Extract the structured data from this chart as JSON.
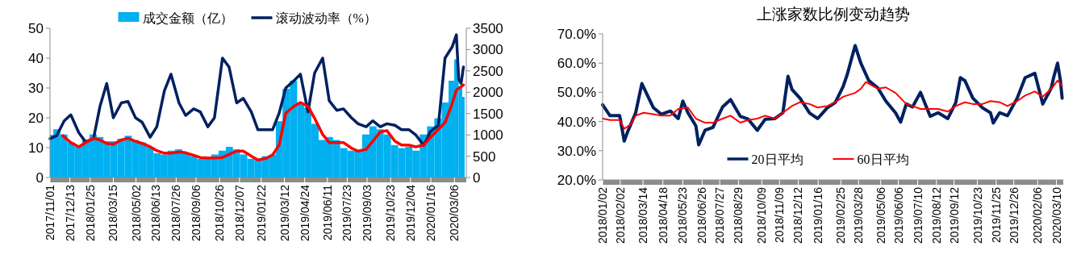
{
  "chart_data": [
    {
      "type": "bar",
      "legend": "top",
      "xlim": [
        "2017-11-01",
        "2020-03-31"
      ],
      "xticks": [
        {
          "value": "2017-11-01",
          "label": "2017/11/01"
        },
        {
          "value": "2017-12-13",
          "label": "2017/12/13"
        },
        {
          "value": "2018-01-25",
          "label": "2018/01/25"
        },
        {
          "value": "2018-03-15",
          "label": "2018/03/15"
        },
        {
          "value": "2018-05-02",
          "label": "2018/05/02"
        },
        {
          "value": "2018-06-13",
          "label": "2018/06/13"
        },
        {
          "value": "2018-07-26",
          "label": "2018/07/26"
        },
        {
          "value": "2018-09-06",
          "label": "2018/09/06"
        },
        {
          "value": "2018-10-26",
          "label": "2018/10/26"
        },
        {
          "value": "2018-12-07",
          "label": "2018/12/07"
        },
        {
          "value": "2019-01-22",
          "label": "2019/01/22"
        },
        {
          "value": "2019-03-12",
          "label": "2019/03/12"
        },
        {
          "value": "2019-04-24",
          "label": "2019/04/24"
        },
        {
          "value": "2019-06-11",
          "label": "2019/06/11"
        },
        {
          "value": "2019-07-23",
          "label": "2019/07/23"
        },
        {
          "value": "2019-09-03",
          "label": "2019/09/03"
        },
        {
          "value": "2019-10-23",
          "label": "2019/10/23"
        },
        {
          "value": "2019-12-04",
          "label": "2019/12/04"
        },
        {
          "value": "2020-01-16",
          "label": "2020/01/16"
        },
        {
          "value": "2020-03-06",
          "label": "2020/03/06"
        }
      ],
      "ylim": [
        0,
        50
      ],
      "yticks": [
        0,
        10,
        20,
        30,
        40,
        50
      ],
      "y2lim": [
        0,
        3500
      ],
      "y2ticks": [
        0,
        500,
        1000,
        1500,
        2000,
        2500,
        3000,
        3500
      ],
      "series": [
        {
          "name": "成交金额（亿）",
          "type": "bar",
          "axis": "y2",
          "color": "#00b0f0",
          "x": [
            "2017-11-01",
            "2017-11-15",
            "2017-12-01",
            "2017-12-15",
            "2018-01-01",
            "2018-01-15",
            "2018-02-01",
            "2018-02-15",
            "2018-03-01",
            "2018-03-15",
            "2018-04-01",
            "2018-04-15",
            "2018-05-01",
            "2018-05-15",
            "2018-06-01",
            "2018-06-15",
            "2018-07-01",
            "2018-07-15",
            "2018-08-01",
            "2018-08-15",
            "2018-09-01",
            "2018-09-15",
            "2018-10-01",
            "2018-10-15",
            "2018-11-01",
            "2018-11-15",
            "2018-12-01",
            "2018-12-15",
            "2019-01-01",
            "2019-01-15",
            "2019-02-01",
            "2019-02-15",
            "2019-03-01",
            "2019-03-15",
            "2019-04-01",
            "2019-04-15",
            "2019-05-01",
            "2019-05-15",
            "2019-06-01",
            "2019-06-15",
            "2019-07-01",
            "2019-07-15",
            "2019-08-01",
            "2019-08-15",
            "2019-09-01",
            "2019-09-15",
            "2019-10-01",
            "2019-10-15",
            "2019-11-01",
            "2019-11-15",
            "2019-12-01",
            "2019-12-15",
            "2020-01-01",
            "2020-01-15",
            "2020-02-01",
            "2020-02-15",
            "2020-03-01",
            "2020-03-10",
            "2020-03-20",
            "2020-03-25"
          ],
          "values": [
            1000,
            1130,
            1010,
            820,
            720,
            880,
            1010,
            950,
            850,
            850,
            910,
            980,
            880,
            820,
            720,
            570,
            540,
            630,
            660,
            570,
            500,
            440,
            470,
            540,
            630,
            720,
            660,
            540,
            440,
            440,
            500,
            540,
            1320,
            2080,
            2270,
            1760,
            1640,
            1260,
            880,
            950,
            880,
            690,
            630,
            630,
            1010,
            1200,
            1130,
            1010,
            760,
            690,
            720,
            630,
            1010,
            1200,
            1390,
            1760,
            2270,
            2770,
            2140,
            1890
          ]
        },
        {
          "name": "滚动波动率（%）",
          "type": "line",
          "color": "#002060",
          "x": [
            "2017-11-01",
            "2017-11-15",
            "2017-12-01",
            "2017-12-15",
            "2018-01-01",
            "2018-01-15",
            "2018-02-01",
            "2018-02-15",
            "2018-03-01",
            "2018-03-15",
            "2018-04-01",
            "2018-04-15",
            "2018-05-01",
            "2018-05-15",
            "2018-06-01",
            "2018-06-15",
            "2018-07-01",
            "2018-07-15",
            "2018-08-01",
            "2018-08-15",
            "2018-09-01",
            "2018-09-15",
            "2018-10-01",
            "2018-10-15",
            "2018-11-01",
            "2018-11-15",
            "2018-12-01",
            "2018-12-15",
            "2019-01-01",
            "2019-01-15",
            "2019-02-01",
            "2019-02-15",
            "2019-03-01",
            "2019-03-15",
            "2019-04-01",
            "2019-04-15",
            "2019-05-01",
            "2019-05-15",
            "2019-06-01",
            "2019-06-15",
            "2019-07-01",
            "2019-07-15",
            "2019-08-01",
            "2019-08-15",
            "2019-09-01",
            "2019-09-15",
            "2019-10-01",
            "2019-10-15",
            "2019-11-01",
            "2019-11-15",
            "2019-12-01",
            "2019-12-15",
            "2020-01-01",
            "2020-01-15",
            "2020-02-01",
            "2020-02-15",
            "2020-03-01",
            "2020-03-10",
            "2020-03-15",
            "2020-03-20",
            "2020-03-25"
          ],
          "values": [
            13,
            14,
            19,
            21,
            15,
            12,
            13,
            24,
            31.5,
            20,
            25,
            25.5,
            20,
            18.5,
            13.5,
            17,
            29,
            34.6,
            25,
            20.8,
            23,
            22,
            17,
            20,
            40,
            37,
            25,
            26.5,
            22,
            16,
            16,
            16,
            21.6,
            30,
            32.4,
            34.6,
            22,
            35,
            40,
            25.7,
            22.5,
            23,
            20,
            18,
            17,
            19,
            17,
            18,
            17.5,
            16,
            16,
            14.3,
            10.8,
            15.4,
            17.5,
            40,
            43.7,
            47.8,
            33,
            31.5,
            37
          ]
        },
        {
          "type": "line",
          "axis": "y2",
          "color": "#ff0000",
          "x": [
            "2017-11-28",
            "2017-12-15",
            "2018-01-01",
            "2018-01-15",
            "2018-02-01",
            "2018-02-15",
            "2018-03-01",
            "2018-03-15",
            "2018-04-01",
            "2018-04-15",
            "2018-05-01",
            "2018-05-15",
            "2018-06-01",
            "2018-06-15",
            "2018-07-01",
            "2018-07-15",
            "2018-08-01",
            "2018-08-15",
            "2018-09-01",
            "2018-09-15",
            "2018-10-01",
            "2018-10-15",
            "2018-11-01",
            "2018-11-15",
            "2018-12-01",
            "2018-12-15",
            "2019-01-01",
            "2019-01-15",
            "2019-02-01",
            "2019-02-15",
            "2019-03-01",
            "2019-03-15",
            "2019-04-01",
            "2019-04-15",
            "2019-05-01",
            "2019-05-15",
            "2019-06-01",
            "2019-06-15",
            "2019-07-01",
            "2019-07-15",
            "2019-08-01",
            "2019-08-15",
            "2019-09-01",
            "2019-09-15",
            "2019-10-01",
            "2019-10-15",
            "2019-11-01",
            "2019-11-15",
            "2019-12-01",
            "2019-12-15",
            "2020-01-01",
            "2020-01-15",
            "2020-02-01",
            "2020-02-15",
            "2020-03-01",
            "2020-03-10",
            "2020-03-20",
            "2020-03-25"
          ],
          "values": [
            980,
            820,
            720,
            820,
            920,
            880,
            800,
            780,
            880,
            920,
            850,
            800,
            720,
            630,
            570,
            570,
            600,
            580,
            520,
            470,
            460,
            460,
            470,
            540,
            620,
            620,
            500,
            410,
            450,
            530,
            760,
            1510,
            1670,
            1760,
            1670,
            1390,
            1010,
            820,
            820,
            820,
            690,
            620,
            660,
            850,
            1070,
            1100,
            850,
            760,
            760,
            720,
            760,
            940,
            1130,
            1290,
            1730,
            2050,
            2130,
            2170
          ]
        }
      ]
    },
    {
      "type": "line",
      "title": "上涨家数比例变动趋势",
      "legend": "bottom",
      "xlim": [
        "2018-01-02",
        "2020-03-22"
      ],
      "xticks": [
        {
          "value": "2018-01-02",
          "label": "2018/01/02"
        },
        {
          "value": "2018-02-02",
          "label": "2018/02/02"
        },
        {
          "value": "2018-03-14",
          "label": "2018/03/14"
        },
        {
          "value": "2018-04-18",
          "label": "2018/04/18"
        },
        {
          "value": "2018-05-23",
          "label": "2018/05/23"
        },
        {
          "value": "2018-06-26",
          "label": "2018/06/26"
        },
        {
          "value": "2018-07-27",
          "label": "2018/07/27"
        },
        {
          "value": "2018-08-29",
          "label": "2018/08/29"
        },
        {
          "value": "2018-10-09",
          "label": "2018/10/09"
        },
        {
          "value": "2018-11-09",
          "label": "2018/11/09"
        },
        {
          "value": "2018-12-12",
          "label": "2018/12/12"
        },
        {
          "value": "2019-01-16",
          "label": "2019/01/16"
        },
        {
          "value": "2019-02-25",
          "label": "2019/02/25"
        },
        {
          "value": "2019-03-28",
          "label": "2019/03/28"
        },
        {
          "value": "2019-05-06",
          "label": "2019/05/06"
        },
        {
          "value": "2019-06-06",
          "label": "2019/06/06"
        },
        {
          "value": "2019-07-10",
          "label": "2019/07/10"
        },
        {
          "value": "2019-08-12",
          "label": "2019/08/12"
        },
        {
          "value": "2019-09-12",
          "label": "2019/09/12"
        },
        {
          "value": "2019-10-23",
          "label": "2019/10/23"
        },
        {
          "value": "2019-11-25",
          "label": "2019/11/25"
        },
        {
          "value": "2019-12-26",
          "label": "2019/12/26"
        },
        {
          "value": "2020-02-06",
          "label": "2020/02/06"
        },
        {
          "value": "2020-03-10",
          "label": "2020/03/10"
        }
      ],
      "ylim": [
        20,
        70
      ],
      "yticks": [
        {
          "value": 20,
          "label": "20.0%"
        },
        {
          "value": 30,
          "label": "30.0%"
        },
        {
          "value": 40,
          "label": "40.0%"
        },
        {
          "value": 50,
          "label": "50.0%"
        },
        {
          "value": 60,
          "label": "60.0%"
        },
        {
          "value": 70,
          "label": "70.0%"
        }
      ],
      "series": [
        {
          "name": "20日平均",
          "color": "#002060",
          "x": [
            "2018-01-02",
            "2018-01-15",
            "2018-02-01",
            "2018-02-09",
            "2018-02-15",
            "2018-03-01",
            "2018-03-12",
            "2018-04-01",
            "2018-04-15",
            "2018-05-01",
            "2018-05-15",
            "2018-05-23",
            "2018-06-01",
            "2018-06-15",
            "2018-06-20",
            "2018-07-01",
            "2018-07-15",
            "2018-08-01",
            "2018-08-15",
            "2018-09-01",
            "2018-09-15",
            "2018-10-01",
            "2018-10-15",
            "2018-11-01",
            "2018-11-15",
            "2018-11-24",
            "2018-12-01",
            "2018-12-15",
            "2019-01-01",
            "2019-01-15",
            "2019-02-01",
            "2019-02-15",
            "2019-03-01",
            "2019-03-08",
            "2019-03-22",
            "2019-04-01",
            "2019-04-15",
            "2019-05-01",
            "2019-05-15",
            "2019-06-01",
            "2019-06-10",
            "2019-06-20",
            "2019-07-01",
            "2019-07-15",
            "2019-08-01",
            "2019-08-15",
            "2019-09-01",
            "2019-09-15",
            "2019-09-23",
            "2019-10-01",
            "2019-10-15",
            "2019-11-01",
            "2019-11-15",
            "2019-11-20",
            "2019-12-01",
            "2019-12-15",
            "2020-01-01",
            "2020-01-15",
            "2020-02-01",
            "2020-02-15",
            "2020-03-01",
            "2020-03-05",
            "2020-03-12",
            "2020-03-17",
            "2020-03-20"
          ],
          "values": [
            45.7,
            42,
            42,
            33.3,
            36.5,
            42.9,
            53,
            44.8,
            42.5,
            43.6,
            41,
            47,
            43,
            38.5,
            32,
            37,
            38,
            45,
            47.5,
            41.8,
            40.8,
            37,
            40.8,
            41,
            43,
            55.5,
            51,
            48,
            42.9,
            41,
            44.7,
            46.5,
            52,
            56,
            66,
            60,
            54,
            51.5,
            47,
            43,
            39.8,
            46,
            45,
            50,
            41.8,
            43,
            41,
            46.5,
            55,
            54,
            48,
            44.7,
            43,
            39.5,
            43,
            42,
            48,
            55,
            56.5,
            46,
            51.5,
            55,
            60,
            54,
            48
          ]
        },
        {
          "name": "60日平均",
          "color": "#ff0000",
          "x": [
            "2018-01-02",
            "2018-01-15",
            "2018-02-01",
            "2018-02-09",
            "2018-02-20",
            "2018-03-01",
            "2018-03-15",
            "2018-04-01",
            "2018-04-15",
            "2018-05-01",
            "2018-05-15",
            "2018-06-01",
            "2018-06-15",
            "2018-07-01",
            "2018-07-15",
            "2018-08-01",
            "2018-08-15",
            "2018-09-01",
            "2018-09-15",
            "2018-10-01",
            "2018-10-15",
            "2018-11-01",
            "2018-11-15",
            "2018-12-01",
            "2018-12-15",
            "2019-01-01",
            "2019-01-15",
            "2019-02-01",
            "2019-02-15",
            "2019-03-01",
            "2019-03-22",
            "2019-04-01",
            "2019-04-10",
            "2019-04-15",
            "2019-05-01",
            "2019-05-15",
            "2019-06-01",
            "2019-06-20",
            "2019-07-01",
            "2019-07-15",
            "2019-08-01",
            "2019-08-15",
            "2019-09-01",
            "2019-09-15",
            "2019-10-01",
            "2019-10-15",
            "2019-11-01",
            "2019-11-15",
            "2019-12-01",
            "2019-12-15",
            "2020-01-01",
            "2020-01-15",
            "2020-02-01",
            "2020-02-15",
            "2020-03-01",
            "2020-03-12",
            "2020-03-20"
          ],
          "values": [
            41,
            40.5,
            40.5,
            37.5,
            39,
            42,
            43,
            42.5,
            42,
            42,
            44.3,
            44.8,
            41,
            39.6,
            39.6,
            41,
            42,
            39.6,
            40.5,
            41,
            42,
            41,
            43,
            45.3,
            46.6,
            46,
            44.8,
            45.3,
            46.6,
            48.5,
            49.8,
            51.2,
            53.5,
            53,
            51.2,
            51.7,
            49.8,
            46,
            45.3,
            44.3,
            44.3,
            44.3,
            43.4,
            45.3,
            46.6,
            46,
            46,
            47,
            46.6,
            45.3,
            47,
            48.9,
            50.3,
            48.5,
            51.2,
            54,
            52.3
          ]
        }
      ]
    }
  ]
}
